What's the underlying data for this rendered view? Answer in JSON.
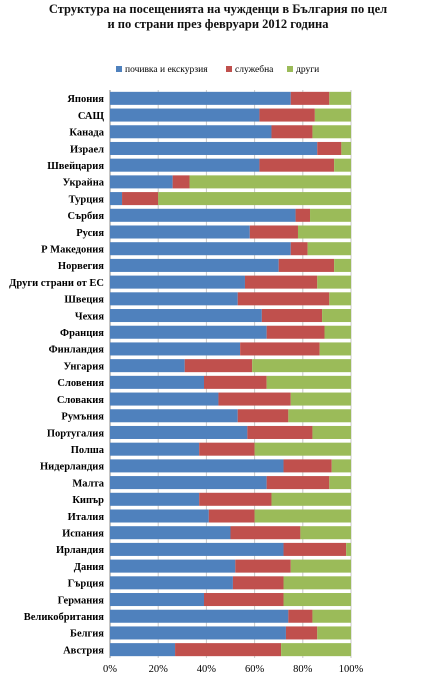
{
  "chart_data": {
    "type": "bar",
    "stacked_percent": true,
    "orientation": "horizontal",
    "title": [
      "Структура на посещенията на чужденци в България по цел",
      "и по страни през февруари 2012 година"
    ],
    "categories": [
      "Япония",
      "САЩ",
      "Канада",
      "Израел",
      "Швейцария",
      "Украйна",
      "Турция",
      "Сърбия",
      "Русия",
      "Р Македония",
      "Норвегия",
      "Други страни от ЕС",
      "Швеция",
      "Чехия",
      "Франция",
      "Финландия",
      "Унгария",
      "Словения",
      "Словакия",
      "Румъния",
      "Португалия",
      "Полша",
      "Нидерландия",
      "Малта",
      "Кипър",
      "Италия",
      "Испания",
      "Ирландия",
      "Дания",
      "Гърция",
      "Германия",
      "Великобритания",
      "Белгия",
      "Австрия"
    ],
    "series": [
      {
        "name": "почивка и екскурзия",
        "color": "#4f81bd",
        "values": [
          75,
          62,
          67,
          86,
          62,
          26,
          5,
          77,
          58,
          75,
          70,
          56,
          53,
          63,
          65,
          54,
          31,
          39,
          45,
          53,
          57,
          37,
          72,
          65,
          37,
          41,
          50,
          72,
          52,
          51,
          39,
          74,
          73,
          27
        ]
      },
      {
        "name": "служебна",
        "color": "#c0504d",
        "values": [
          16,
          23,
          17,
          10,
          31,
          7,
          15,
          6,
          20,
          7,
          23,
          30,
          38,
          25,
          24,
          33,
          28,
          26,
          30,
          21,
          27,
          23,
          20,
          26,
          30,
          19,
          29,
          26,
          23,
          21,
          33,
          10,
          13,
          44
        ]
      },
      {
        "name": "други",
        "color": "#9bbb59",
        "values": [
          9,
          15,
          16,
          4,
          7,
          67,
          80,
          17,
          22,
          18,
          7,
          14,
          9,
          12,
          11,
          13,
          41,
          35,
          25,
          26,
          16,
          40,
          8,
          9,
          33,
          40,
          21,
          2,
          25,
          28,
          28,
          16,
          14,
          29
        ]
      }
    ],
    "xlim": [
      0,
      100
    ],
    "xticks": [
      "0%",
      "20%",
      "40%",
      "60%",
      "80%",
      "100%"
    ],
    "legend_position": "top",
    "grid": true
  }
}
